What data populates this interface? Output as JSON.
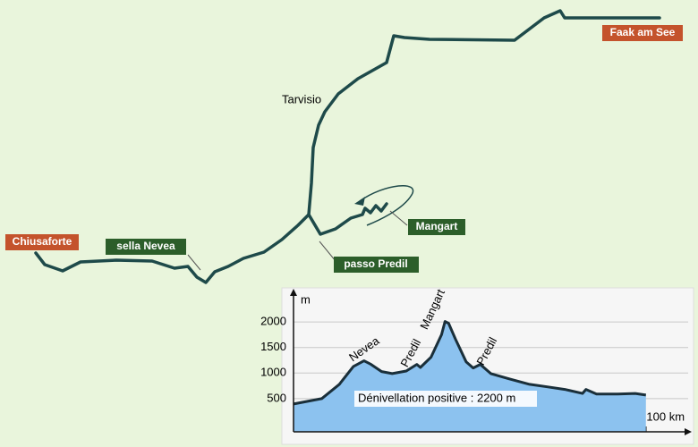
{
  "map": {
    "places": {
      "faak": "Faak am See",
      "tarvisio": "Tarvisio",
      "mangart": "Mangart",
      "predil": "passo Predil",
      "nevea": "sella Nevea",
      "chiusaforte": "Chiusaforte"
    }
  },
  "chart_data": {
    "type": "area",
    "y_label": "m",
    "color": "#8cc2ef",
    "line_color": "#1a2f3a",
    "x": [
      0,
      8,
      13,
      17,
      20,
      22,
      25,
      28,
      32,
      35,
      36,
      39,
      42,
      43,
      44,
      46,
      49,
      51,
      53,
      56,
      61,
      67,
      72,
      77,
      82,
      83,
      86,
      92,
      97,
      100
    ],
    "values": [
      395,
      500,
      780,
      1130,
      1240,
      1170,
      1030,
      990,
      1040,
      1170,
      1110,
      1310,
      1750,
      2010,
      1975,
      1660,
      1220,
      1100,
      1170,
      990,
      890,
      780,
      730,
      680,
      600,
      680,
      590,
      590,
      600,
      570
    ],
    "xlim": [
      0,
      112
    ],
    "ylim": [
      -150,
      2650
    ],
    "xticks": [
      50,
      {
        "value": 100,
        "label": "100 km"
      }
    ],
    "yticks": [
      500,
      1000,
      1500,
      2000
    ],
    "grid": true,
    "annotations": [
      "Nevea",
      "Predil",
      "Mangart",
      "Predil",
      "Dénivellation positive : 2200 m"
    ]
  }
}
